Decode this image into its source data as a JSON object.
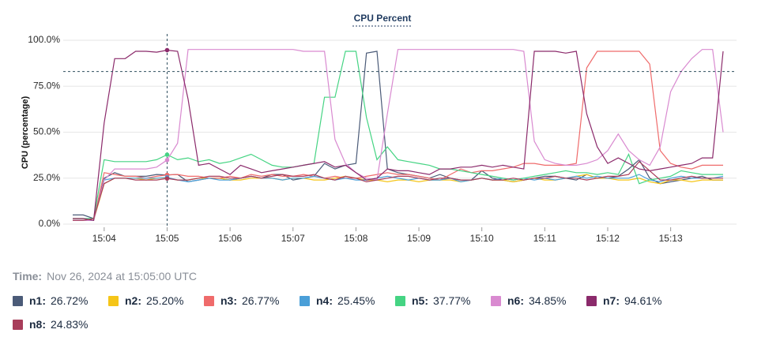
{
  "chart_data": {
    "type": "line",
    "title": "CPU Percent",
    "y_label": "CPU (percentage)",
    "ylim": [
      0,
      100
    ],
    "yticks": [
      {
        "value": 0,
        "label": "0.0%"
      },
      {
        "value": 25,
        "label": "25.0%"
      },
      {
        "value": 50,
        "label": "50.0%"
      },
      {
        "value": 75,
        "label": "75.0%"
      },
      {
        "value": 100,
        "label": "100.0%"
      }
    ],
    "grid": true,
    "categories": [
      null,
      null,
      null,
      "15:04",
      null,
      null,
      null,
      null,
      null,
      "15:05",
      null,
      null,
      null,
      null,
      null,
      "15:06",
      null,
      null,
      null,
      null,
      null,
      "15:07",
      null,
      null,
      null,
      null,
      null,
      "15:08",
      null,
      null,
      null,
      null,
      null,
      "15:09",
      null,
      null,
      null,
      null,
      null,
      "15:10",
      null,
      null,
      null,
      null,
      null,
      "15:11",
      null,
      null,
      null,
      null,
      null,
      "15:12",
      null,
      null,
      null,
      null,
      null,
      "15:13",
      null,
      null,
      null,
      null,
      null
    ],
    "crosshair": {
      "category": "15:05",
      "y": 83
    },
    "time_label": "Time:",
    "time": "Nov 26, 2024 at 15:05:00 UTC",
    "series": [
      {
        "name": "n1",
        "color": "#4b5b78",
        "current_label": "26.72%",
        "values": [
          5,
          5,
          3,
          25,
          28,
          26,
          26,
          26,
          27,
          26.72,
          27,
          23,
          24,
          25,
          25,
          24,
          25,
          26,
          25,
          27,
          27,
          24,
          25,
          26,
          33,
          30,
          32,
          33,
          93,
          94,
          30,
          28,
          27,
          26,
          25,
          27,
          25,
          24,
          24,
          29,
          25,
          24,
          23,
          24,
          25,
          26,
          26,
          25,
          24,
          27,
          25,
          25,
          26,
          30,
          35,
          25,
          22,
          23,
          24,
          25,
          26,
          24,
          24
        ]
      },
      {
        "name": "n2",
        "color": "#f5c518",
        "current_label": "25.20%",
        "values": [
          3,
          3,
          2,
          22,
          25,
          25,
          25,
          24,
          25,
          25.2,
          24,
          24,
          25,
          25,
          25,
          24,
          24,
          25,
          25,
          25,
          24,
          25,
          25,
          24,
          24,
          25,
          26,
          25,
          24,
          24,
          23,
          24,
          24,
          23,
          24,
          24,
          24,
          23,
          24,
          25,
          24,
          24,
          23,
          24,
          25,
          24,
          24,
          25,
          26,
          27,
          25,
          25,
          24,
          24,
          25,
          23,
          22,
          24,
          24,
          23,
          24,
          24,
          24
        ]
      },
      {
        "name": "n3",
        "color": "#ef6b6b",
        "current_label": "26.77%",
        "values": [
          2,
          2,
          2,
          28,
          27,
          26,
          26,
          25,
          26,
          26.77,
          27,
          26,
          26,
          25,
          25,
          26,
          25,
          27,
          26,
          27,
          26,
          26,
          27,
          26,
          25,
          26,
          25,
          25,
          26,
          27,
          28,
          27,
          27,
          26,
          25,
          24,
          27,
          30,
          28,
          29,
          29,
          30,
          31,
          33,
          33,
          32,
          32,
          32,
          33,
          85,
          94,
          94,
          94,
          94,
          94,
          87,
          40,
          33,
          31,
          30,
          32,
          32,
          32
        ]
      },
      {
        "name": "n4",
        "color": "#4a9fd8",
        "current_label": "25.45%",
        "values": [
          2,
          2,
          2,
          24,
          25,
          25,
          25,
          25,
          25,
          25.45,
          24,
          23,
          24,
          25,
          24,
          24,
          25,
          26,
          25,
          25,
          24,
          25,
          25,
          26,
          25,
          24,
          25,
          24,
          24,
          25,
          26,
          25,
          24,
          25,
          24,
          24,
          25,
          23,
          24,
          25,
          24,
          25,
          24,
          25,
          24,
          25,
          24,
          25,
          26,
          25,
          26,
          25,
          25,
          25,
          27,
          24,
          23,
          25,
          26,
          25,
          25,
          25,
          26
        ]
      },
      {
        "name": "n5",
        "color": "#45d483",
        "current_label": "37.77%",
        "values": [
          3,
          3,
          3,
          35,
          34,
          34,
          34,
          34,
          35,
          37.77,
          35,
          36,
          34,
          35,
          33,
          34,
          36,
          38,
          35,
          32,
          31,
          31,
          32,
          33,
          69,
          69,
          94,
          94,
          58,
          35,
          42,
          35,
          34,
          33,
          32,
          30,
          30,
          29,
          28,
          27,
          26,
          25,
          24,
          25,
          26,
          27,
          28,
          29,
          28,
          28,
          27,
          28,
          27,
          38,
          22,
          24,
          25,
          26,
          29,
          28,
          27,
          27,
          27
        ]
      },
      {
        "name": "n6",
        "color": "#d98ad0",
        "current_label": "34.85%",
        "values": [
          2,
          2,
          2,
          24,
          30,
          30,
          30,
          30,
          31,
          34.85,
          44,
          95,
          95,
          95,
          95,
          95,
          95,
          95,
          95,
          95,
          95,
          95,
          94,
          94,
          94,
          46,
          33,
          28,
          25,
          24,
          60,
          95,
          95,
          95,
          95,
          95,
          95,
          95,
          95,
          95,
          95,
          95,
          95,
          94,
          45,
          35,
          33,
          32,
          32,
          33,
          35,
          40,
          49,
          40,
          35,
          32,
          42,
          72,
          83,
          90,
          95,
          95,
          50
        ]
      },
      {
        "name": "n7",
        "color": "#8b2a6b",
        "current_label": "94.61%",
        "values": [
          3,
          3,
          2,
          55,
          90,
          90,
          94,
          94,
          93.5,
          94.61,
          94,
          68,
          32,
          33,
          30,
          27,
          32,
          30,
          28,
          29,
          30,
          31,
          32,
          33,
          34,
          31,
          32,
          28,
          24,
          25,
          30,
          29,
          29,
          28,
          27,
          30,
          30,
          31,
          31,
          32,
          31,
          32,
          31,
          30,
          94,
          94,
          94,
          93,
          94,
          60,
          42,
          33,
          36,
          33,
          30,
          29,
          30,
          31,
          32,
          33,
          36,
          36,
          94
        ]
      },
      {
        "name": "n8",
        "color": "#a83d5a",
        "current_label": "24.83%",
        "values": [
          2,
          2,
          3,
          22,
          25,
          25,
          24,
          24,
          24,
          24.83,
          24,
          24,
          25,
          26,
          26,
          25,
          25,
          26,
          25,
          26,
          27,
          26,
          26,
          27,
          25,
          24,
          26,
          25,
          23,
          24,
          25,
          26,
          26,
          25,
          24,
          25,
          25,
          24,
          24,
          25,
          24,
          24,
          25,
          24,
          25,
          25,
          26,
          25,
          25,
          24,
          25,
          26,
          26,
          27,
          34,
          29,
          24,
          24,
          25,
          26,
          25,
          25,
          25
        ]
      }
    ]
  }
}
